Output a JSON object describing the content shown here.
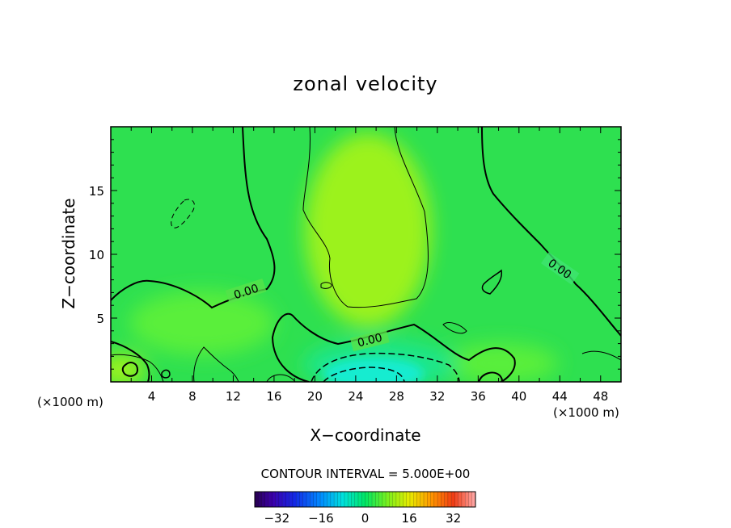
{
  "chart_data": {
    "type": "heatmap",
    "title": "zonal velocity",
    "xlabel": "X−coordinate",
    "ylabel": "Z−coordinate",
    "x_scale_label_left": "(×1000 m)",
    "x_scale_label_right": "(×1000 m)",
    "xlim": [
      0,
      50
    ],
    "ylim": [
      0,
      20
    ],
    "xticks": [
      "4",
      "8",
      "12",
      "16",
      "20",
      "24",
      "28",
      "32",
      "36",
      "40",
      "44",
      "48"
    ],
    "yticks": [
      "5",
      "10",
      "15"
    ],
    "contour_interval_text": "CONTOUR INTERVAL = 5.000E+00",
    "contour_labels": [
      "0.00",
      "0.00",
      "0.00"
    ],
    "colorbar": {
      "range": [
        -40,
        40
      ],
      "ticks": [
        "−32",
        "−16",
        "0",
        "16",
        "32"
      ],
      "tick_values": [
        -32,
        -16,
        0,
        16,
        32
      ]
    },
    "field_summary": {
      "background_value_range": [
        -5,
        10
      ],
      "max_region": {
        "x": [
          20,
          32
        ],
        "z": [
          7,
          19
        ],
        "approx_value": 8
      },
      "min_region": {
        "x": [
          20,
          34
        ],
        "z": [
          0,
          2
        ],
        "approx_value": -10
      }
    },
    "colors": {
      "base_green": "#2ee050",
      "light_green": "#5aef3a",
      "yellow_green": "#9cf21c",
      "cyan_min": "#12ecd0",
      "teal": "#1ee68a"
    }
  }
}
